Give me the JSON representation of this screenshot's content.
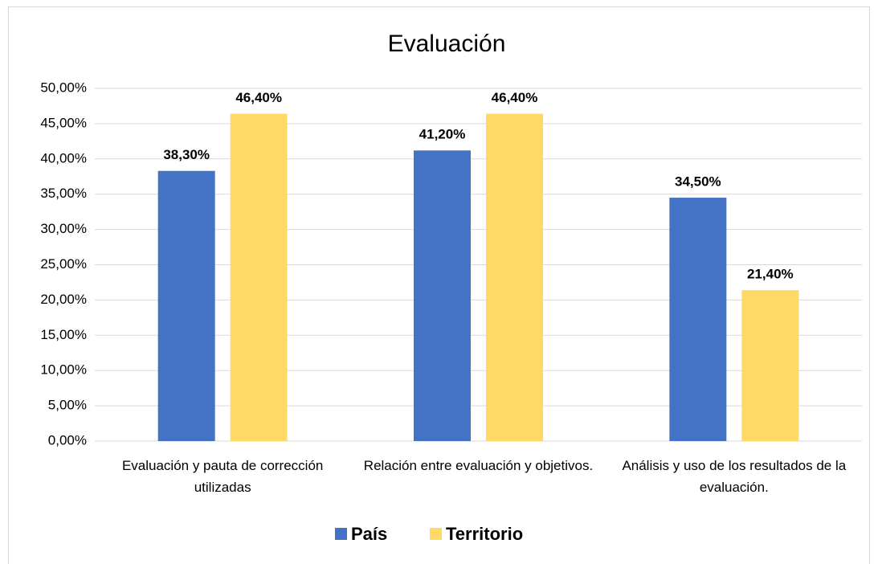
{
  "chart_data": {
    "type": "bar",
    "title": "Evaluación",
    "categories": [
      "Evaluación y pauta de corrección utilizadas",
      "Relación entre evaluación y objetivos.",
      "Análisis y uso de los resultados de la evaluación."
    ],
    "series": [
      {
        "name": "País",
        "color": "#4472c4",
        "values": [
          38.3,
          41.2,
          34.5
        ],
        "value_labels": [
          "38,30%",
          "41,20%",
          "34,50%"
        ]
      },
      {
        "name": "Territorio",
        "color": "#ffd966",
        "values": [
          46.4,
          46.4,
          21.4
        ],
        "value_labels": [
          "46,40%",
          "46,40%",
          "21,40%"
        ]
      }
    ],
    "ylim": [
      0,
      50
    ],
    "yticks": [
      {
        "value": 0,
        "label": "0,00%"
      },
      {
        "value": 5,
        "label": "5,00%"
      },
      {
        "value": 10,
        "label": "10,00%"
      },
      {
        "value": 15,
        "label": "15,00%"
      },
      {
        "value": 20,
        "label": "20,00%"
      },
      {
        "value": 25,
        "label": "25,00%"
      },
      {
        "value": 30,
        "label": "30,00%"
      },
      {
        "value": 35,
        "label": "35,00%"
      },
      {
        "value": 40,
        "label": "40,00%"
      },
      {
        "value": 45,
        "label": "45,00%"
      },
      {
        "value": 50,
        "label": "50,00%"
      }
    ],
    "grid": true,
    "legend": "bottom"
  }
}
